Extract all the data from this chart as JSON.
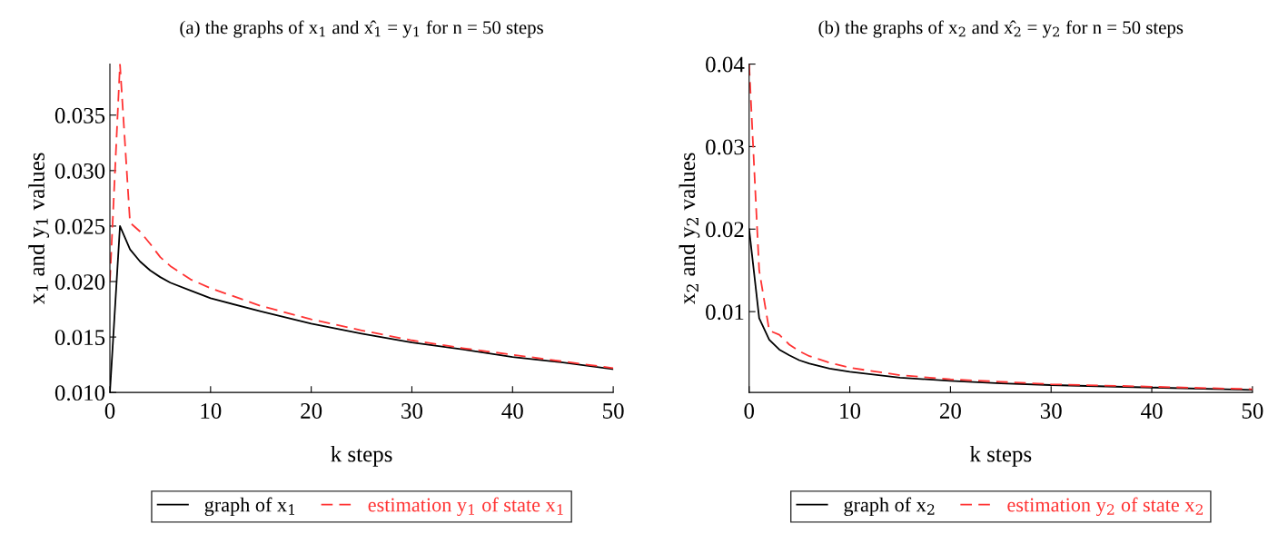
{
  "chart_data": [
    {
      "type": "line",
      "title": "(a) the graphs of x$_{1}$ and x̂$_{1}$ = y$_{1}$ for n = 50 steps",
      "xlabel": "k steps",
      "ylabel": "x$_{1}$ and y$_{1}$ values",
      "x": [
        0,
        1,
        2,
        3,
        4,
        5,
        6,
        8,
        10,
        15,
        20,
        25,
        30,
        35,
        40,
        45,
        50
      ],
      "series": [
        {
          "name": "graph of x$_{1}$",
          "color": "#000000",
          "line_style": "solid",
          "values": [
            0.01,
            0.025,
            0.0229,
            0.0218,
            0.021,
            0.0204,
            0.0199,
            0.0192,
            0.0185,
            0.0173,
            0.0162,
            0.0153,
            0.0145,
            0.0139,
            0.0132,
            0.0127,
            0.0121
          ]
        },
        {
          "name": "estimation y$_{1}$ of state x$_{1}$",
          "color": "#ff3333",
          "line_style": "dashed",
          "values": [
            0.02,
            0.0396,
            0.0253,
            0.0245,
            0.0234,
            0.0222,
            0.0214,
            0.0202,
            0.0194,
            0.0178,
            0.0166,
            0.0156,
            0.0147,
            0.014,
            0.0134,
            0.0128,
            0.0122
          ]
        }
      ],
      "xlim": [
        0,
        50
      ],
      "xticks": [
        0,
        10,
        20,
        30,
        40,
        50
      ],
      "ylim": [
        0.01,
        0.0396
      ],
      "yticks": [
        {
          "value": 0.01,
          "label": "0.010"
        },
        {
          "value": 0.015,
          "label": "0.015"
        },
        {
          "value": 0.02,
          "label": "0.020"
        },
        {
          "value": 0.025,
          "label": "0.025"
        },
        {
          "value": 0.03,
          "label": "0.030"
        },
        {
          "value": 0.035,
          "label": "0.035"
        }
      ],
      "grid": false,
      "legend": "bottom"
    },
    {
      "type": "line",
      "title": "(b) the graphs of x$_{2}$ and x̂$_{2}$ = y$_{2}$ for n = 50 steps",
      "xlabel": "k steps",
      "ylabel": "x$_{2}$ and y$_{2}$ values",
      "x": [
        0,
        1,
        2,
        3,
        4,
        5,
        6,
        8,
        10,
        15,
        20,
        25,
        30,
        40,
        50
      ],
      "series": [
        {
          "name": "graph of x$_{2}$",
          "color": "#000000",
          "line_style": "solid",
          "values": [
            0.02,
            0.0092,
            0.0066,
            0.0054,
            0.0047,
            0.0041,
            0.0037,
            0.0031,
            0.0027,
            0.002,
            0.0016,
            0.0013,
            0.0011,
            0.0008,
            0.0005
          ]
        },
        {
          "name": "estimation y$_{2}$ of state x$_{2}$",
          "color": "#ff3333",
          "line_style": "dashed",
          "values": [
            0.04,
            0.015,
            0.0077,
            0.0072,
            0.006,
            0.0052,
            0.0046,
            0.0038,
            0.0032,
            0.0023,
            0.0018,
            0.0015,
            0.0012,
            0.0009,
            0.0006
          ]
        }
      ],
      "xlim": [
        0,
        50
      ],
      "xticks": [
        0,
        10,
        20,
        30,
        40,
        50
      ],
      "ylim": [
        0.0002,
        0.04
      ],
      "yticks": [
        0.01,
        0.02,
        0.03,
        0.04
      ],
      "grid": false,
      "legend": "bottom"
    }
  ]
}
